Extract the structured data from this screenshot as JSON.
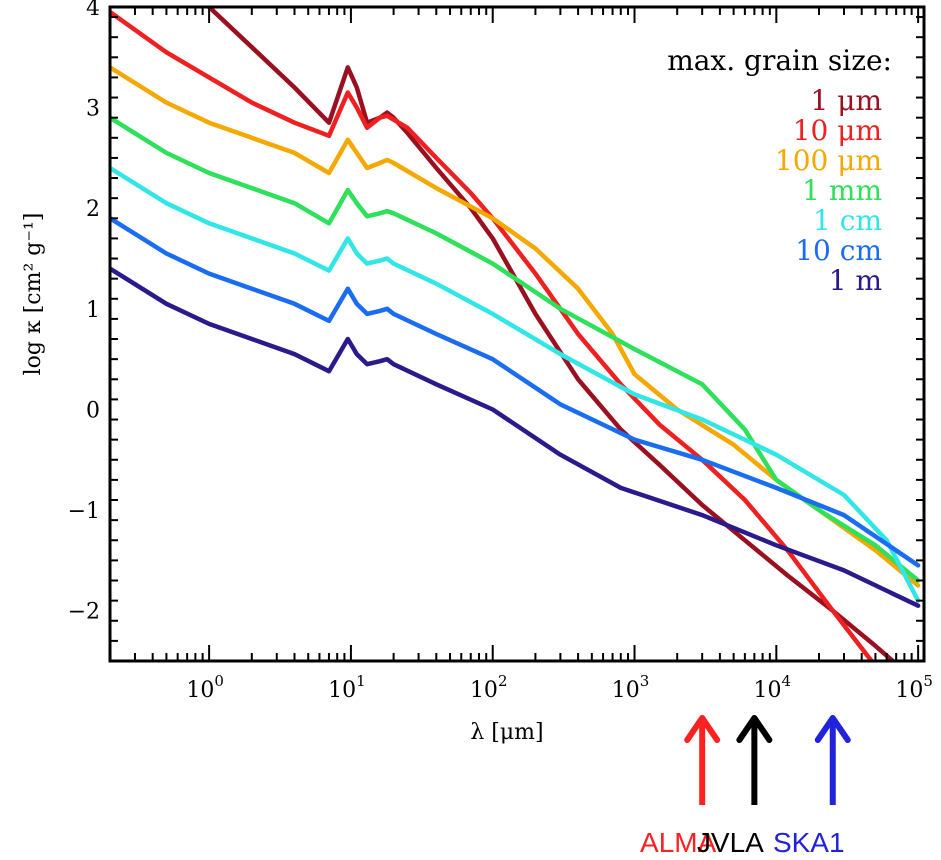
{
  "chart_data": {
    "type": "line",
    "title": "",
    "xlabel": "λ [μm]",
    "ylabel": "log κ [cm² g⁻¹]",
    "x_scale": "log",
    "xlim": [
      0.2,
      110000
    ],
    "ylim": [
      -2.5,
      4
    ],
    "x_ticks": [
      {
        "value": 1,
        "base": "10",
        "exp": "0"
      },
      {
        "value": 10,
        "base": "10",
        "exp": "1"
      },
      {
        "value": 100,
        "base": "10",
        "exp": "2"
      },
      {
        "value": 1000,
        "base": "10",
        "exp": "3"
      },
      {
        "value": 10000,
        "base": "10",
        "exp": "4"
      },
      {
        "value": 100000,
        "base": "10",
        "exp": "5"
      }
    ],
    "y_ticks": [
      {
        "value": 4,
        "label": "4"
      },
      {
        "value": 3,
        "label": "3"
      },
      {
        "value": 2,
        "label": "2"
      },
      {
        "value": 1,
        "label": "1"
      },
      {
        "value": 0,
        "label": "0"
      },
      {
        "value": -1,
        "label": "−1"
      },
      {
        "value": -2,
        "label": "−2"
      }
    ],
    "legend_title": "max. grain size:",
    "legend_position": "top-right",
    "series": [
      {
        "name": "1 μm",
        "color": "#9b1020",
        "x": [
          0.2,
          0.5,
          1,
          2,
          4,
          7,
          9.5,
          11,
          13,
          16,
          18,
          20,
          25,
          40,
          70,
          100,
          200,
          400,
          800,
          1500,
          3000,
          6000,
          12000,
          25000,
          50000,
          80000
        ],
        "y": [
          4.55,
          4.25,
          4.0,
          3.6,
          3.2,
          2.85,
          3.4,
          3.2,
          2.85,
          2.9,
          2.95,
          2.9,
          2.75,
          2.4,
          2.0,
          1.7,
          0.95,
          0.3,
          -0.2,
          -0.55,
          -0.95,
          -1.3,
          -1.65,
          -2.0,
          -2.35,
          -2.6
        ]
      },
      {
        "name": "10 μm",
        "color": "#ee2020",
        "x": [
          0.2,
          0.5,
          1,
          2,
          4,
          7,
          9.5,
          11,
          13,
          16,
          18,
          20,
          25,
          40,
          70,
          100,
          200,
          400,
          800,
          1500,
          3000,
          6000,
          12000,
          25000,
          50000
        ],
        "y": [
          3.95,
          3.55,
          3.3,
          3.05,
          2.85,
          2.72,
          3.15,
          3.0,
          2.8,
          2.9,
          2.92,
          2.88,
          2.8,
          2.5,
          2.15,
          1.9,
          1.35,
          0.75,
          0.25,
          -0.15,
          -0.5,
          -0.9,
          -1.4,
          -2.0,
          -2.55
        ]
      },
      {
        "name": "100 μm",
        "color": "#f5a800",
        "x": [
          0.2,
          0.5,
          1,
          2,
          4,
          7,
          9.5,
          11,
          13,
          16,
          18,
          20,
          40,
          100,
          200,
          400,
          700,
          1000,
          2000,
          5000,
          10000,
          20000,
          50000,
          100000
        ],
        "y": [
          3.4,
          3.05,
          2.85,
          2.7,
          2.55,
          2.35,
          2.68,
          2.55,
          2.4,
          2.45,
          2.48,
          2.45,
          2.2,
          1.9,
          1.6,
          1.2,
          0.75,
          0.35,
          0.0,
          -0.35,
          -0.7,
          -1.0,
          -1.4,
          -1.75
        ]
      },
      {
        "name": "1 mm",
        "color": "#2ee05a",
        "x": [
          0.2,
          0.5,
          1,
          2,
          4,
          7,
          9.5,
          11,
          13,
          16,
          18,
          20,
          40,
          100,
          300,
          1000,
          3000,
          6000,
          10000,
          20000,
          50000,
          100000
        ],
        "y": [
          2.9,
          2.55,
          2.35,
          2.2,
          2.05,
          1.85,
          2.18,
          2.05,
          1.92,
          1.95,
          1.97,
          1.95,
          1.75,
          1.45,
          1.0,
          0.6,
          0.25,
          -0.2,
          -0.7,
          -1.0,
          -1.35,
          -1.7
        ]
      },
      {
        "name": "1 cm",
        "color": "#33e6e6",
        "x": [
          0.2,
          0.5,
          1,
          2,
          4,
          7,
          9.5,
          11,
          13,
          16,
          18,
          20,
          40,
          100,
          300,
          1000,
          3000,
          10000,
          30000,
          60000,
          100000
        ],
        "y": [
          2.4,
          2.05,
          1.85,
          1.7,
          1.55,
          1.38,
          1.7,
          1.55,
          1.45,
          1.48,
          1.5,
          1.45,
          1.25,
          0.95,
          0.55,
          0.15,
          -0.1,
          -0.45,
          -0.85,
          -1.3,
          -1.9
        ]
      },
      {
        "name": "10 cm",
        "color": "#1a6cf0",
        "x": [
          0.2,
          0.5,
          1,
          2,
          4,
          7,
          9.5,
          11,
          13,
          16,
          18,
          20,
          40,
          100,
          300,
          1000,
          3000,
          10000,
          30000,
          100000
        ],
        "y": [
          1.9,
          1.55,
          1.35,
          1.2,
          1.05,
          0.88,
          1.2,
          1.05,
          0.95,
          0.98,
          1.0,
          0.95,
          0.75,
          0.5,
          0.05,
          -0.3,
          -0.5,
          -0.78,
          -1.05,
          -1.55
        ]
      },
      {
        "name": "1 m",
        "color": "#2a1a8c",
        "x": [
          0.2,
          0.5,
          1,
          2,
          4,
          7,
          9.5,
          11,
          13,
          16,
          18,
          20,
          40,
          100,
          300,
          800,
          3000,
          10000,
          30000,
          100000
        ],
        "y": [
          1.4,
          1.05,
          0.85,
          0.7,
          0.55,
          0.38,
          0.7,
          0.55,
          0.45,
          0.48,
          0.5,
          0.45,
          0.25,
          0.0,
          -0.45,
          -0.78,
          -1.05,
          -1.35,
          -1.6,
          -1.95
        ]
      }
    ],
    "annotations": [
      {
        "label": "ALMA",
        "color": "#ff2020",
        "x": 3000
      },
      {
        "label": "JVLA",
        "color": "#000000",
        "x": 7000
      },
      {
        "label": "SKA1",
        "color": "#2222dd",
        "x": 25000
      }
    ]
  }
}
